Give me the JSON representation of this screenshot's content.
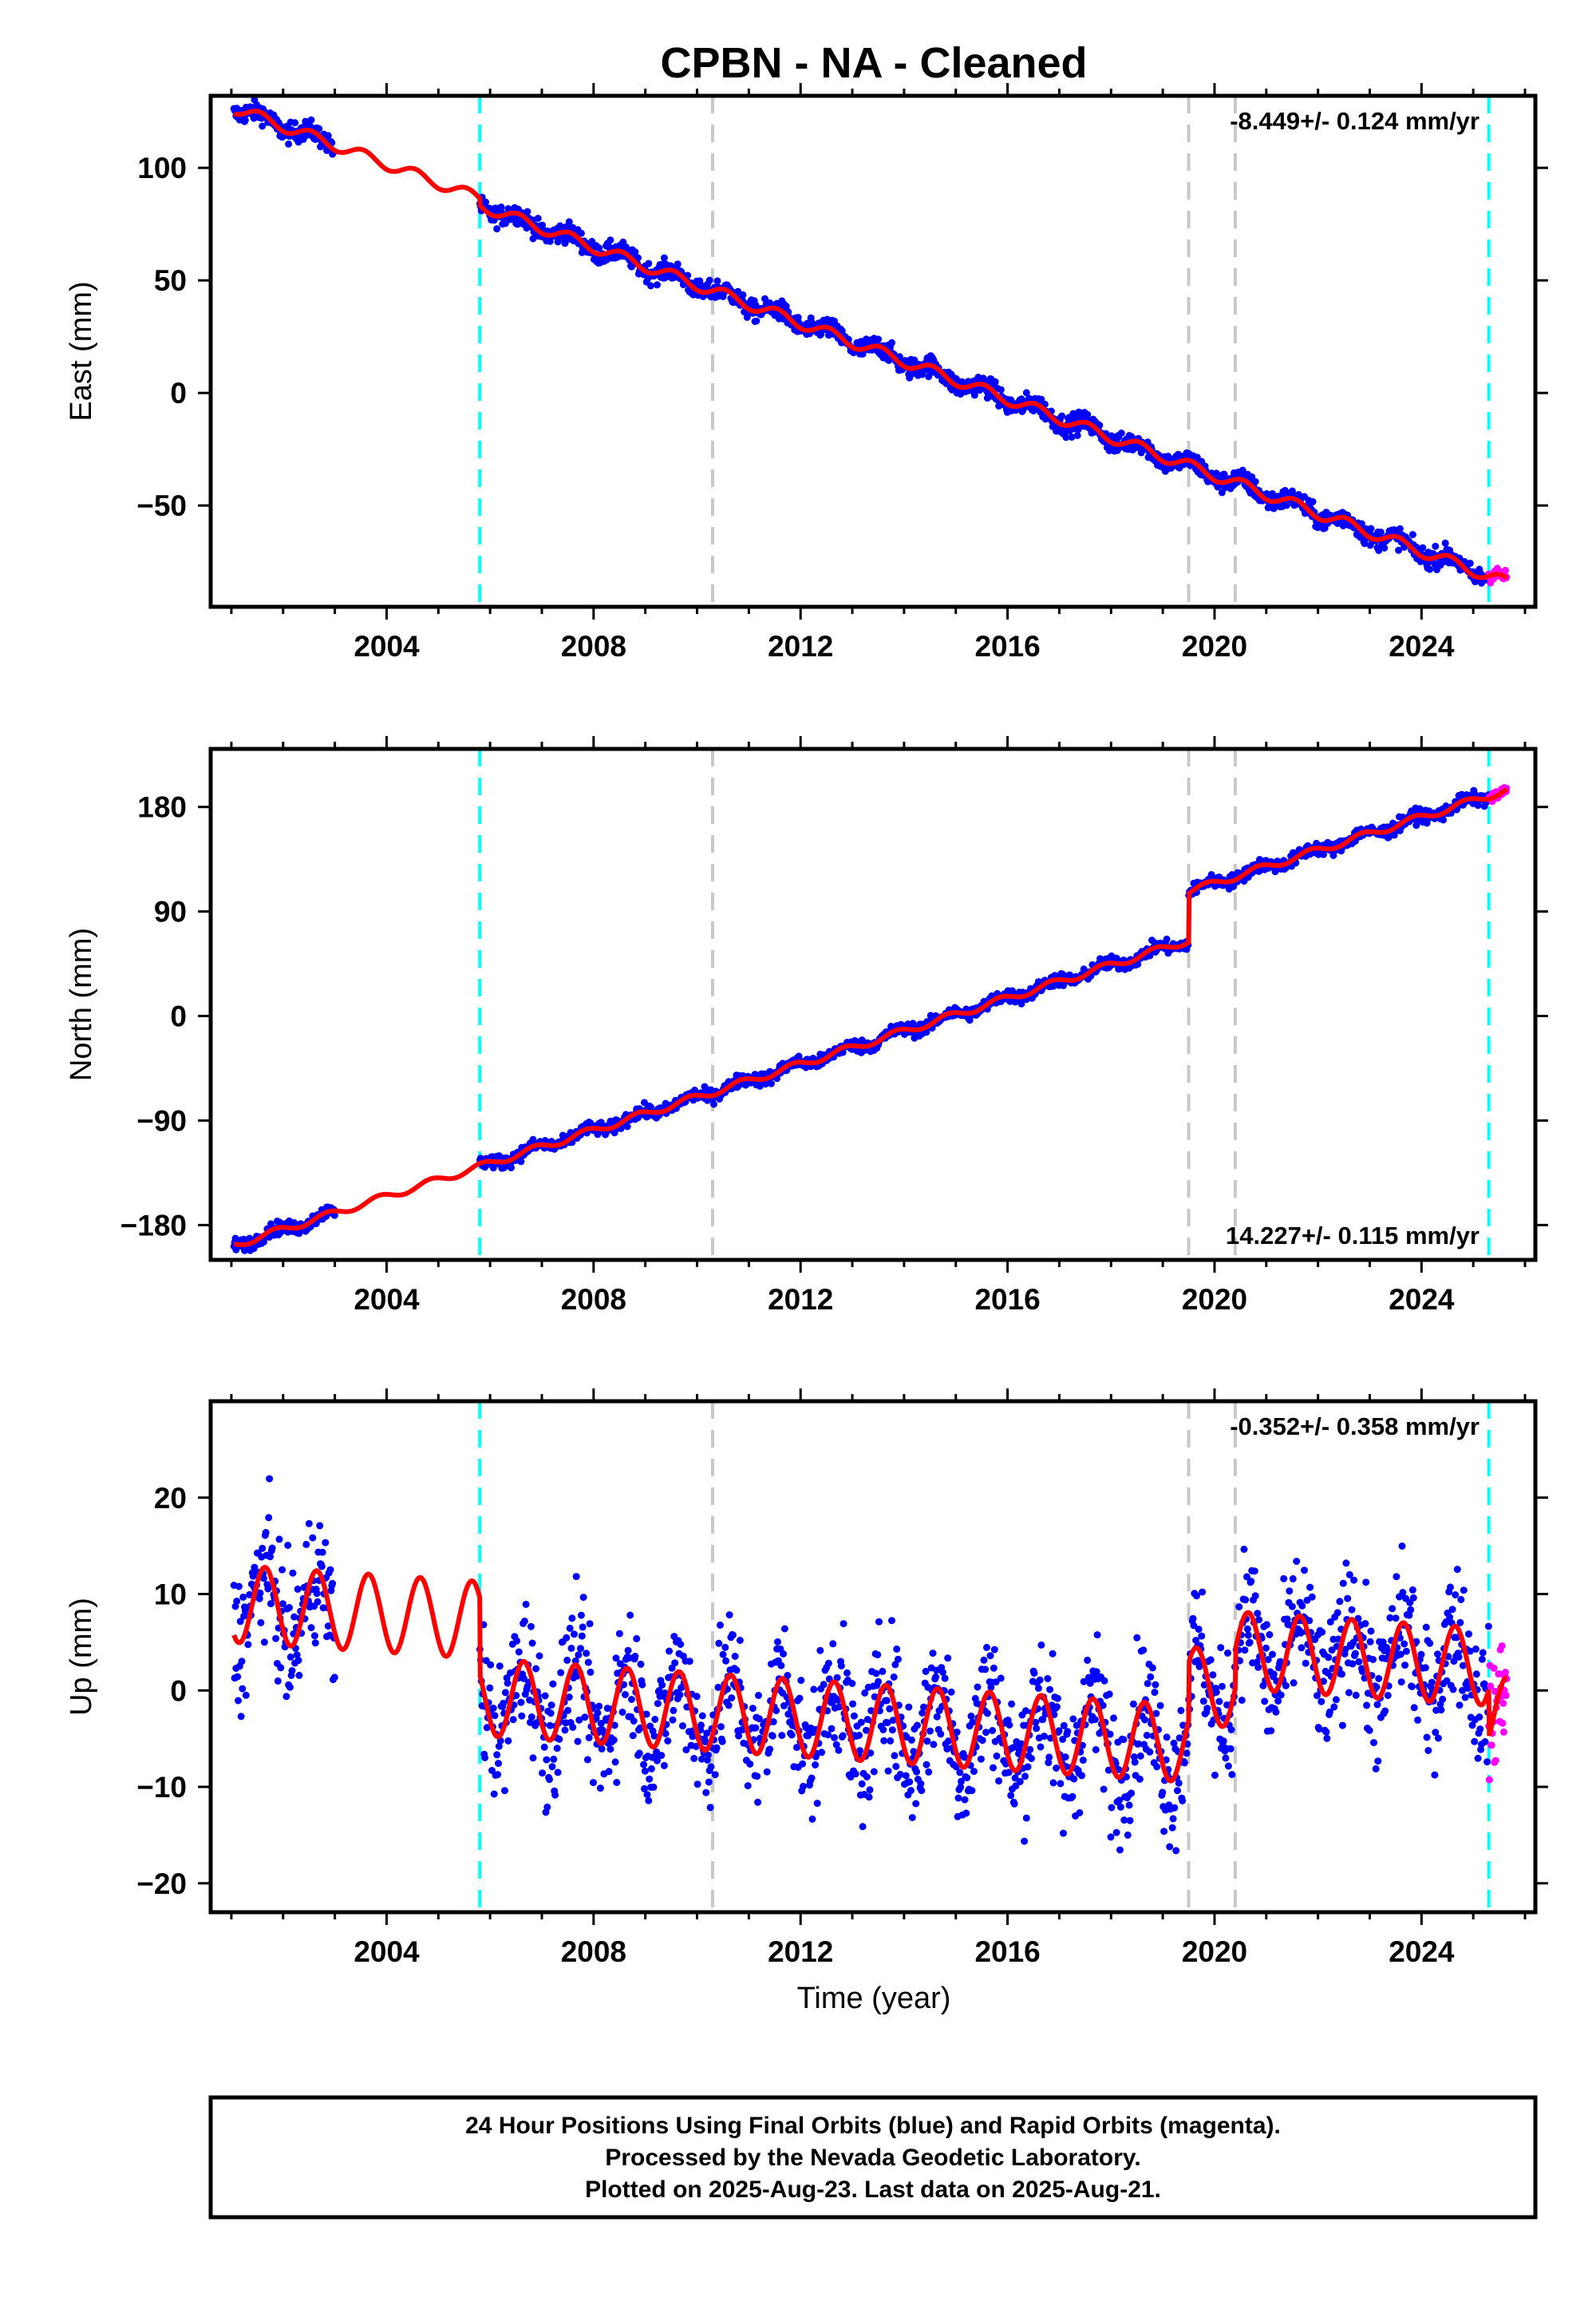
{
  "title": "CPBN  - NA - Cleaned",
  "xlabel": "Time (year)",
  "note_lines": [
    "24 Hour Positions Using Final Orbits (blue) and Rapid Orbits (magenta).",
    "Processed by the Nevada Geodetic Laboratory.",
    "Plotted on 2025-Aug-23. Last data on 2025-Aug-21."
  ],
  "colors": {
    "final_orbits": "#0000ff",
    "rapid_orbits": "#ff00ff",
    "model": "#ff0000",
    "equipment_change": "#00ffff",
    "earthquake": "#c8c8c8"
  },
  "chart_data": [
    {
      "type": "scatter",
      "component": "east",
      "ylabel": "East (mm)",
      "rate": "-8.449+/- 0.124 mm/yr",
      "rate_position": "top-right",
      "xlim": [
        2000.6,
        2026.2
      ],
      "ylim": [
        -95,
        132
      ],
      "xticks": [
        2004,
        2008,
        2012,
        2016,
        2020,
        2024
      ],
      "yticks": [
        -50,
        0,
        50,
        100
      ],
      "gap": [
        2003.0,
        2005.8
      ],
      "cyan_lines": [
        2005.8,
        2025.3
      ],
      "gray_lines": [
        2010.3,
        2019.5,
        2020.4
      ],
      "model": {
        "t0": 2001.0,
        "start": 127,
        "rate": -8.449,
        "amplitude": 2.5,
        "phase": 0.3,
        "offsets": [
          {
            "time": 2005.8,
            "value": -3
          }
        ]
      },
      "scatter": {
        "noise": 2.2
      },
      "rapid": {
        "start": 2025.3,
        "end": 2025.65,
        "noise": 1.5
      }
    },
    {
      "type": "scatter",
      "component": "north",
      "ylabel": "North (mm)",
      "rate": "14.227+/- 0.115 mm/yr",
      "rate_position": "bottom-right",
      "xlim": [
        2000.6,
        2026.2
      ],
      "ylim": [
        -210,
        230
      ],
      "xticks": [
        2004,
        2008,
        2012,
        2016,
        2020,
        2024
      ],
      "yticks": [
        -180,
        -90,
        0,
        90,
        180
      ],
      "gap": [
        2003.0,
        2005.8
      ],
      "cyan_lines": [
        2005.8,
        2025.3
      ],
      "gray_lines": [
        2010.3,
        2019.5,
        2020.4
      ],
      "model": {
        "t0": 2001.0,
        "start": -198,
        "rate": 14.227,
        "amplitude": 3,
        "phase": 0.6,
        "offsets": [
          {
            "time": 2019.5,
            "value": 42
          }
        ]
      },
      "scatter": {
        "noise": 2.8
      },
      "rapid": {
        "start": 2025.3,
        "end": 2025.65,
        "noise": 1.8
      }
    },
    {
      "type": "scatter",
      "component": "up",
      "ylabel": "Up (mm)",
      "rate": "-0.352+/- 0.358 mm/yr",
      "rate_position": "top-right",
      "xlim": [
        2000.6,
        2026.2
      ],
      "ylim": [
        -23,
        30
      ],
      "xticks": [
        2004,
        2008,
        2012,
        2016,
        2020,
        2024
      ],
      "yticks": [
        -20,
        -10,
        0,
        10,
        20
      ],
      "gap": [
        2003.0,
        2005.8
      ],
      "cyan_lines": [
        2005.8,
        2025.3
      ],
      "gray_lines": [
        2010.3,
        2019.5,
        2020.4
      ],
      "model": {
        "t0": 2001.0,
        "start": 9,
        "rate": -0.352,
        "amplitude": 4,
        "phase": 0.4,
        "offsets": [
          {
            "time": 2005.8,
            "value": -8
          },
          {
            "time": 2019.5,
            "value": 6
          },
          {
            "time": 2020.4,
            "value": 4
          },
          {
            "time": 2025.3,
            "value": -5
          }
        ]
      },
      "scatter": {
        "noise": 3.4
      },
      "rapid": {
        "start": 2025.3,
        "end": 2025.65,
        "noise": 3.0
      }
    }
  ]
}
